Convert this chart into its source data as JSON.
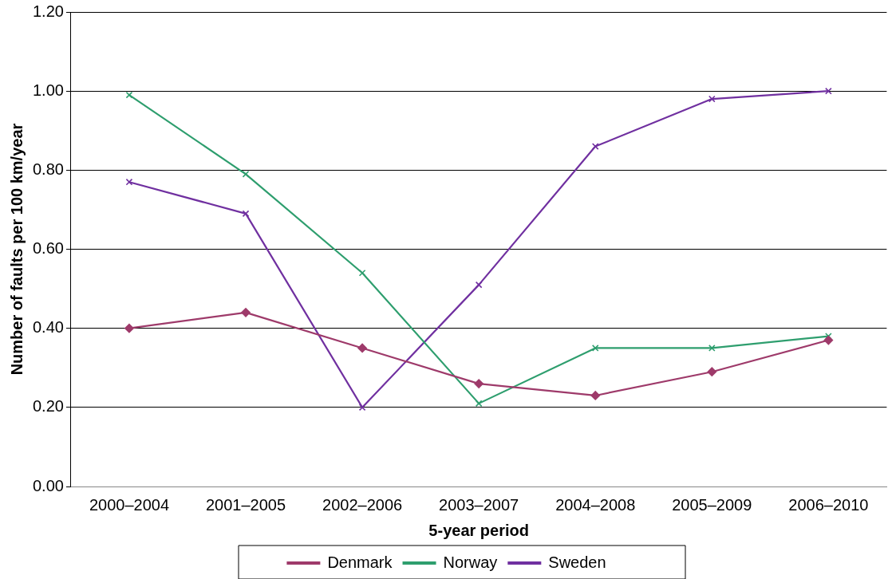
{
  "chart_data": {
    "type": "line",
    "xlabel": "5-year period",
    "ylabel": "Number of faults per 100 km/year",
    "categories": [
      "2000–2004",
      "2001–2005",
      "2002–2006",
      "2003–2007",
      "2004–2008",
      "2005–2009",
      "2006–2010"
    ],
    "series": [
      {
        "name": "Denmark",
        "color": "#9e3a6a",
        "marker": "diamond",
        "values": [
          0.4,
          0.44,
          0.35,
          0.26,
          0.23,
          0.29,
          0.37
        ]
      },
      {
        "name": "Norway",
        "color": "#2e9e6e",
        "marker": "cross",
        "values": [
          0.99,
          0.79,
          0.54,
          0.21,
          0.35,
          0.35,
          0.38
        ]
      },
      {
        "name": "Sweden",
        "color": "#7030a0",
        "marker": "cross",
        "values": [
          0.77,
          0.69,
          0.2,
          0.51,
          0.86,
          0.98,
          1.0
        ]
      }
    ],
    "ylim": [
      0,
      1.2
    ],
    "yticks": [
      {
        "value": 0,
        "label": "0.00"
      },
      {
        "value": 0.2,
        "label": "0.20"
      },
      {
        "value": 0.4,
        "label": "0.40"
      },
      {
        "value": 0.6,
        "label": "0.60"
      },
      {
        "value": 0.8,
        "label": "0.80"
      },
      {
        "value": 1.0,
        "label": "1.00"
      },
      {
        "value": 1.2,
        "label": "1.20"
      }
    ],
    "grid": "y",
    "legend": "bottom",
    "line_style": "solid"
  }
}
